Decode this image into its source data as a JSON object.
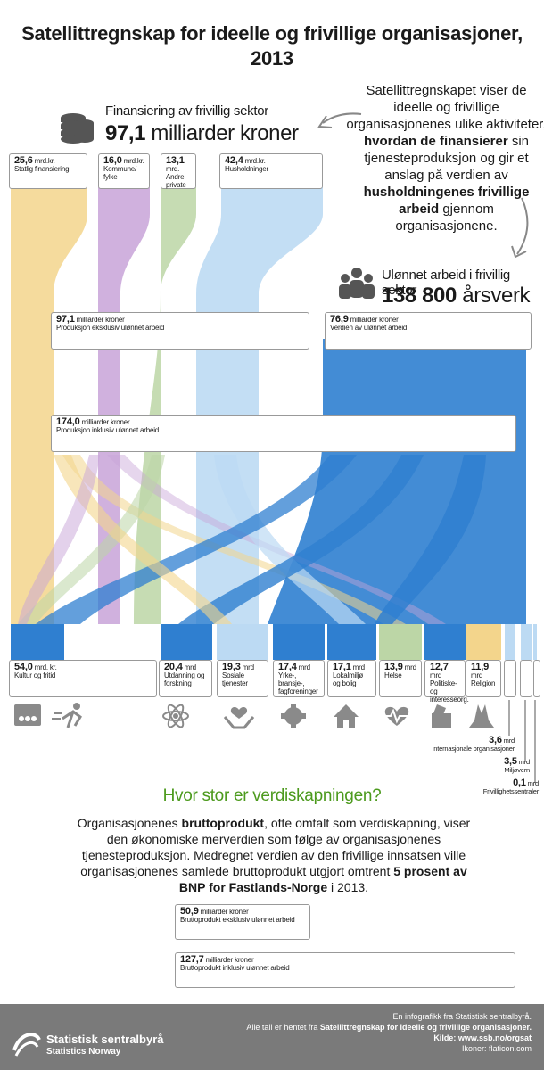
{
  "title": "Satellittregnskap for ideelle og frivillige organisasjoner, 2013",
  "intro": {
    "part1": "Satellittregnskapet viser de ideelle og frivillige organisasjonenes ulike aktiviteter,",
    "bold1": "hvordan de finansierer",
    "part2": "sin tjenesteproduksjon og gir et anslag på verdien av",
    "bold2": "husholdningenes frivillige arbeid",
    "part3": "gjennom organisasjonene."
  },
  "financing": {
    "label": "Finansiering av frivillig sektor",
    "value": "97,1",
    "unit": "milliarder kroner"
  },
  "unpaid": {
    "label": "Ulønnet arbeid i frivillig sektor",
    "value": "138 800",
    "unit": "årsverk"
  },
  "sources": [
    {
      "value": "25,6",
      "unit": "mrd.kr.",
      "label": "Statlig finansiering",
      "color": "#f3d58c"
    },
    {
      "value": "16,0",
      "unit": "mrd.kr.",
      "label": "Kommune/ fylke",
      "color": "#c8a3d8"
    },
    {
      "value": "13,1",
      "unit": "mrd.",
      "label": "Andre private",
      "color": "#bcd6a6"
    },
    {
      "value": "42,4",
      "unit": "mrd.kr.",
      "label": "Husholdninger",
      "color": "#bcdaf3"
    }
  ],
  "mid_boxes": {
    "prod_excl": {
      "value": "97,1",
      "unit": "milliarder kroner",
      "label": "Produksjon eksklusiv ulønnet arbeid"
    },
    "unpaid_value": {
      "value": "76,9",
      "unit": "milliarder kroner",
      "label": "Verdien av ulønnet arbeid"
    },
    "prod_incl": {
      "value": "174,0",
      "unit": "milliarder kroner",
      "label": "Produksjon inklusiv ulønnet arbeid"
    }
  },
  "sectors": [
    {
      "value": "54,0",
      "unit": "mrd. kr.",
      "label": "Kultur og fritid",
      "icon": "theater-icon"
    },
    {
      "value": "20,4",
      "unit": "mrd",
      "label": "Utdanning og forskning",
      "icon": "atom-icon"
    },
    {
      "value": "19,3",
      "unit": "mrd",
      "label": "Sosiale tjenester",
      "icon": "heart-hands-icon"
    },
    {
      "value": "17,4",
      "unit": "mrd",
      "label": "Yrke-, bransje-, fagforeninger",
      "icon": "gear-icon"
    },
    {
      "value": "17,1",
      "unit": "mrd",
      "label": "Lokalmiljø og bolig",
      "icon": "house-icon"
    },
    {
      "value": "13,9",
      "unit": "mrd",
      "label": "Helse",
      "icon": "heartbeat-icon"
    },
    {
      "value": "12,7",
      "unit": "mrd",
      "label": "Politiske- og interesseorg.",
      "icon": "ballot-icon"
    },
    {
      "value": "11,9",
      "unit": "mrd",
      "label": "Religion",
      "icon": "praying-hands-icon"
    }
  ],
  "small_sectors": [
    {
      "value": "3,6",
      "unit": "mrd",
      "label": "Internasjonale organisasjoner"
    },
    {
      "value": "3,5",
      "unit": "mrd",
      "label": "Miljøvern"
    },
    {
      "value": "0,1",
      "unit": "mrd",
      "label": "Frivillighetssentraler"
    }
  ],
  "question": "Hvor stor er verdiskapningen?",
  "paragraph": {
    "p1": "Organisasjonenes",
    "b1": "bruttoprodukt",
    "p2": ", ofte omtalt som verdiskapning, viser den økonomiske merverdien som følge av organisasjonenes tjenesteproduksjon. Medregnet verdien av den frivillige innsatsen ville organisasjonenes samlede bruttoprodukt utgjort omtrent",
    "b2": "5 prosent av BNP for Fastlands-Norge",
    "p3": "i 2013."
  },
  "gdp_boxes": [
    {
      "value": "50,9",
      "unit": "milliarder kroner",
      "label": "Bruttoprodukt eksklusiv ulønnet arbeid"
    },
    {
      "value": "127,7",
      "unit": "milliarder kroner",
      "label": "Bruttoprodukt inklusiv ulønnet arbeid"
    }
  ],
  "footer": {
    "line1": "En infografikk fra Statistisk sentralbyrå.",
    "line2_pre": "Alle tall er hentet fra",
    "line2_bold": "Satellittregnskap for ideelle og frivillige organisasjoner.",
    "line3": "Kilde: www.ssb.no/orgsat",
    "line4": "Ikoner: flaticon.com",
    "logo1": "Statistisk sentralbyrå",
    "logo2": "Statistics Norway"
  },
  "colors": {
    "state": "#f3d58c",
    "municipal": "#c8a3d8",
    "private": "#bcd6a6",
    "households": "#bcdaf3",
    "unpaid": "#2f7fd0",
    "accent": "#4c9a1d",
    "icons": "#8a8a8a"
  }
}
